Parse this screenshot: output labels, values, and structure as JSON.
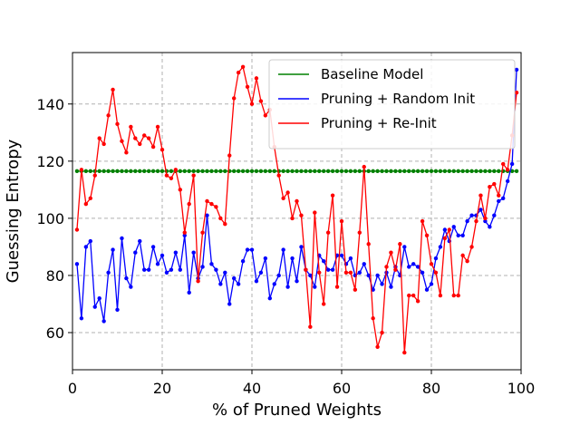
{
  "chart_data": {
    "type": "line",
    "title": "",
    "xlabel": "% of Pruned Weights",
    "ylabel": "Guessing Entropy",
    "xlim": [
      0,
      100
    ],
    "ylim": [
      47,
      158
    ],
    "xticks": [
      0,
      20,
      40,
      60,
      80,
      100
    ],
    "yticks": [
      60,
      80,
      100,
      120,
      140
    ],
    "grid": true,
    "legend_position": "top-right",
    "x": [
      1,
      2,
      3,
      4,
      5,
      6,
      7,
      8,
      9,
      10,
      11,
      12,
      13,
      14,
      15,
      16,
      17,
      18,
      19,
      20,
      21,
      22,
      23,
      24,
      25,
      26,
      27,
      28,
      29,
      30,
      31,
      32,
      33,
      34,
      35,
      36,
      37,
      38,
      39,
      40,
      41,
      42,
      43,
      44,
      45,
      46,
      47,
      48,
      49,
      50,
      51,
      52,
      53,
      54,
      55,
      56,
      57,
      58,
      59,
      60,
      61,
      62,
      63,
      64,
      65,
      66,
      67,
      68,
      69,
      70,
      71,
      72,
      73,
      74,
      75,
      76,
      77,
      78,
      79,
      80,
      81,
      82,
      83,
      84,
      85,
      86,
      87,
      88,
      89,
      90,
      91,
      92,
      93,
      94,
      95,
      96,
      97,
      98,
      99
    ],
    "series": [
      {
        "name": "Baseline Model",
        "color": "#008000",
        "values": [
          116.5,
          116.5,
          116.5,
          116.5,
          116.5,
          116.5,
          116.5,
          116.5,
          116.5,
          116.5,
          116.5,
          116.5,
          116.5,
          116.5,
          116.5,
          116.5,
          116.5,
          116.5,
          116.5,
          116.5,
          116.5,
          116.5,
          116.5,
          116.5,
          116.5,
          116.5,
          116.5,
          116.5,
          116.5,
          116.5,
          116.5,
          116.5,
          116.5,
          116.5,
          116.5,
          116.5,
          116.5,
          116.5,
          116.5,
          116.5,
          116.5,
          116.5,
          116.5,
          116.5,
          116.5,
          116.5,
          116.5,
          116.5,
          116.5,
          116.5,
          116.5,
          116.5,
          116.5,
          116.5,
          116.5,
          116.5,
          116.5,
          116.5,
          116.5,
          116.5,
          116.5,
          116.5,
          116.5,
          116.5,
          116.5,
          116.5,
          116.5,
          116.5,
          116.5,
          116.5,
          116.5,
          116.5,
          116.5,
          116.5,
          116.5,
          116.5,
          116.5,
          116.5,
          116.5,
          116.5,
          116.5,
          116.5,
          116.5,
          116.5,
          116.5,
          116.5,
          116.5,
          116.5,
          116.5,
          116.5,
          116.5,
          116.5,
          116.5,
          116.5,
          116.5,
          116.5,
          116.5,
          116.5,
          116.5
        ]
      },
      {
        "name": "Pruning + Random Init",
        "color": "#0000ff",
        "values": [
          84,
          65,
          90,
          92,
          69,
          72,
          64,
          81,
          89,
          68,
          93,
          79,
          76,
          88,
          92,
          82,
          82,
          90,
          84,
          87,
          81,
          82,
          88,
          82,
          94,
          74,
          88,
          79,
          83,
          101,
          84,
          82,
          77,
          81,
          70,
          79,
          77,
          85,
          89,
          89,
          78,
          81,
          86,
          72,
          77,
          80,
          89,
          76,
          86,
          78,
          90,
          82,
          80,
          76,
          87,
          85,
          82,
          82,
          87,
          87,
          84,
          86,
          80,
          81,
          84,
          80,
          75,
          80,
          77,
          81,
          76,
          83,
          80,
          90,
          83,
          84,
          83,
          81,
          75,
          77,
          86,
          90,
          96,
          92,
          97,
          94,
          94,
          99,
          101,
          101,
          103,
          99,
          97,
          101,
          106,
          107,
          113,
          119,
          152
        ]
      },
      {
        "name": "Pruning + Re-Init",
        "color": "#ff0000",
        "values": [
          96,
          117,
          105,
          107,
          115,
          128,
          126,
          136,
          145,
          133,
          127,
          123,
          132,
          128,
          126,
          129,
          128,
          125,
          132,
          124,
          115,
          114,
          117,
          110,
          95,
          105,
          115,
          78,
          95,
          106,
          105,
          104,
          100,
          98,
          122,
          142,
          151,
          153,
          146,
          140,
          149,
          141,
          136,
          138,
          125,
          115,
          107,
          109,
          100,
          106,
          101,
          82,
          62,
          102,
          81,
          70,
          95,
          108,
          76,
          99,
          81,
          81,
          75,
          95,
          118,
          91,
          65,
          55,
          60,
          83,
          88,
          82,
          91,
          53,
          73,
          73,
          71,
          99,
          94,
          84,
          81,
          73,
          93,
          96,
          73,
          73,
          87,
          85,
          90,
          99,
          108,
          100,
          111,
          112,
          108,
          119,
          117,
          129,
          144
        ]
      }
    ]
  }
}
